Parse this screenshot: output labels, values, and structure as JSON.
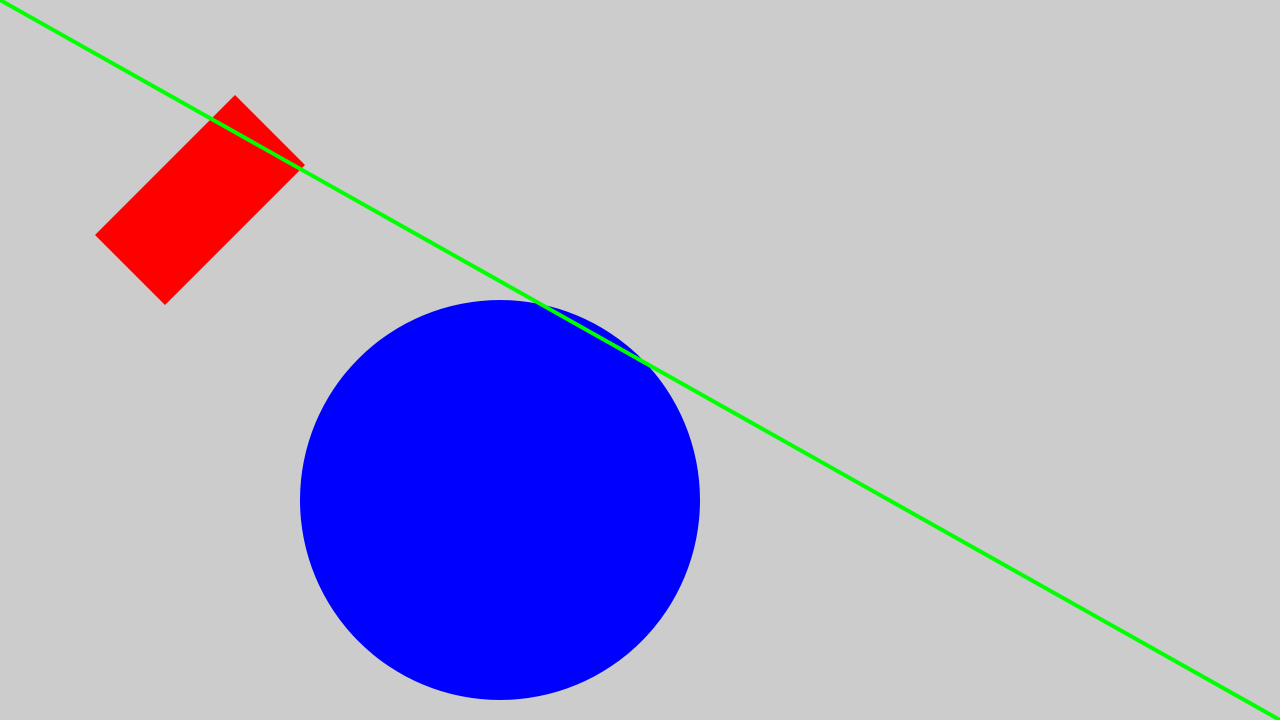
{
  "scene": {
    "background_color": "#cccccc",
    "shapes": [
      {
        "name": "red-rotated-rectangle",
        "kind": "rectangle",
        "color": "#ff0000",
        "rotation_deg": -45
      },
      {
        "name": "blue-circle",
        "kind": "circle",
        "color": "#0000ff"
      },
      {
        "name": "green-diagonal-line",
        "kind": "line",
        "color": "#00ff00"
      }
    ]
  }
}
